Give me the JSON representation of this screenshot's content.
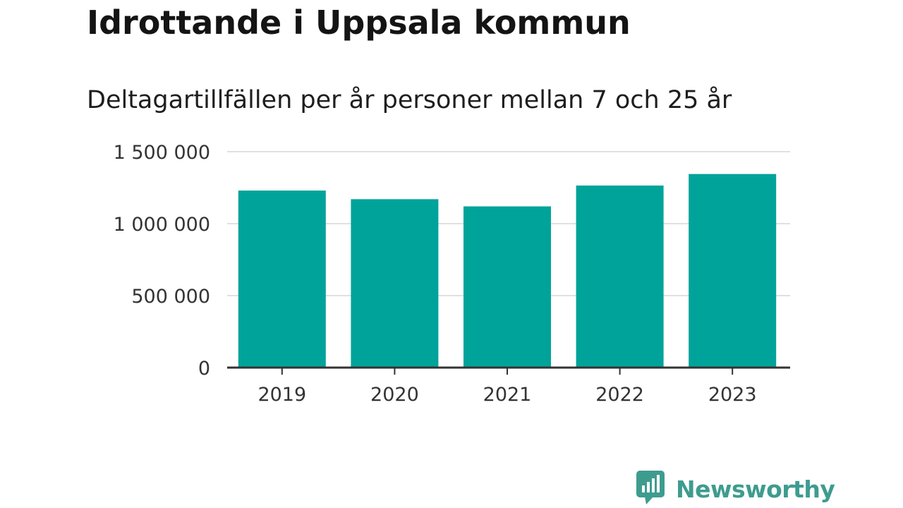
{
  "header": {
    "title": "Idrottande i Uppsala kommun",
    "subtitle": "Deltagartillfällen per år personer mellan 7 och 25 år"
  },
  "chart_data": {
    "type": "bar",
    "categories": [
      "2019",
      "2020",
      "2021",
      "2022",
      "2023"
    ],
    "values": [
      1230000,
      1170000,
      1120000,
      1265000,
      1345000
    ],
    "ylim": [
      0,
      1500000
    ],
    "yticks": [
      0,
      500000,
      1000000,
      1500000
    ],
    "ytick_labels": [
      "0",
      "500 000",
      "1 000 000",
      "1 500 000"
    ],
    "grid": true,
    "bar_color": "#00a39a"
  },
  "brand": {
    "name": "Newsworthy",
    "icon": "bar-chart-speech-bubble-icon",
    "color": "#3e9c8f"
  }
}
